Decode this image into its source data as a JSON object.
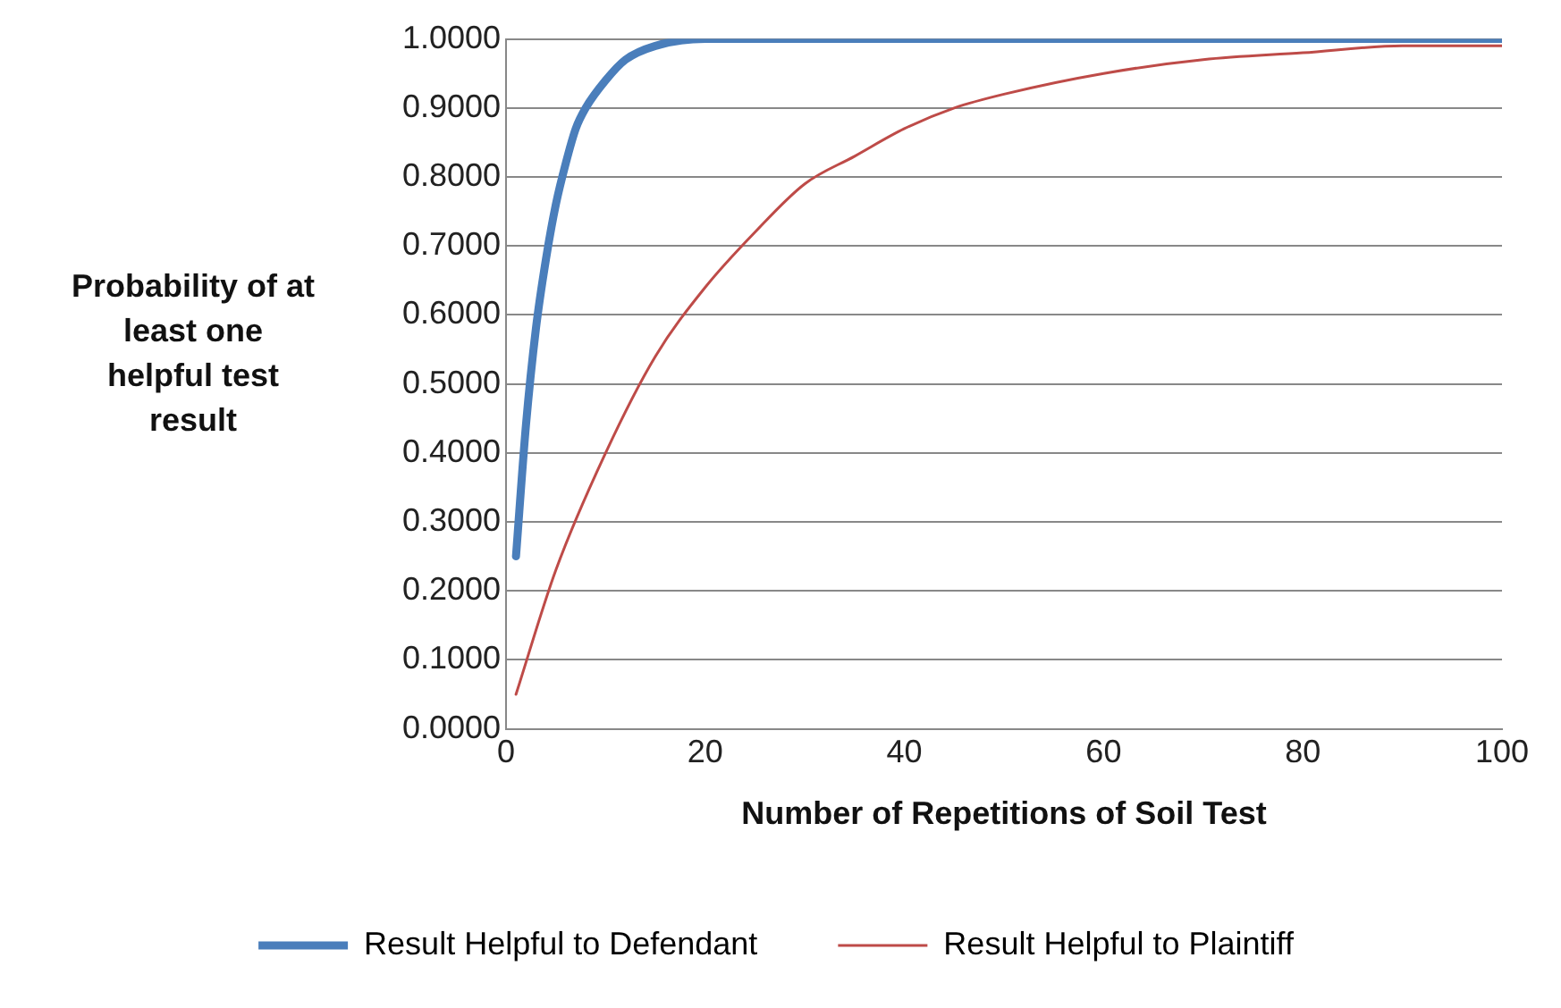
{
  "chart_data": {
    "type": "line",
    "xlabel": "Number of Repetitions of Soil Test",
    "ylabel": "Probability of at least one helpful test result",
    "xlim": [
      0,
      100
    ],
    "xticks": [
      0,
      20,
      40,
      60,
      80,
      100
    ],
    "ylim": [
      0,
      1
    ],
    "yticks": [
      {
        "value": 0,
        "label": "0.0000"
      },
      {
        "value": 0.1,
        "label": "0.1000"
      },
      {
        "value": 0.2,
        "label": "0.2000"
      },
      {
        "value": 0.3,
        "label": "0.3000"
      },
      {
        "value": 0.4,
        "label": "0.4000"
      },
      {
        "value": 0.5,
        "label": "0.5000"
      },
      {
        "value": 0.6,
        "label": "0.6000"
      },
      {
        "value": 0.7,
        "label": "0.7000"
      },
      {
        "value": 0.8,
        "label": "0.8000"
      },
      {
        "value": 0.9,
        "label": "0.9000"
      },
      {
        "value": 1,
        "label": "1.0000"
      }
    ],
    "grid": "y",
    "legend": "bottom",
    "marker": "none",
    "line_style": "solid",
    "series": [
      {
        "name": "Result Helpful to Defendant",
        "color": "#4a7ebb",
        "x": [
          1,
          2,
          3,
          4,
          5,
          6,
          7,
          8,
          10,
          12,
          15,
          20,
          25,
          30,
          50,
          100
        ],
        "values": [
          0.25,
          0.44,
          0.58,
          0.68,
          0.76,
          0.82,
          0.87,
          0.9,
          0.94,
          0.97,
          0.99,
          1,
          1,
          1,
          1,
          1
        ]
      },
      {
        "name": "Result Helpful to Plaintiff",
        "color": "#be4b48",
        "x": [
          1,
          5,
          10,
          15,
          20,
          25,
          30,
          35,
          40,
          45,
          50,
          60,
          70,
          80,
          90,
          100
        ],
        "values": [
          0.05,
          0.23,
          0.4,
          0.54,
          0.64,
          0.72,
          0.79,
          0.83,
          0.87,
          0.9,
          0.92,
          0.95,
          0.97,
          0.98,
          0.99,
          0.99
        ]
      }
    ]
  }
}
